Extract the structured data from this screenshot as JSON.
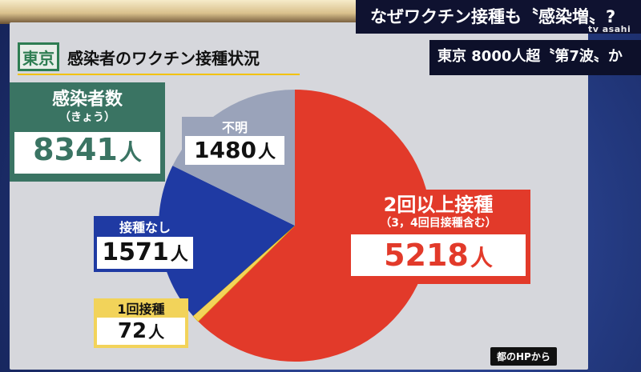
{
  "headline": "なぜワクチン接種も〝感染増〟?",
  "subheadline": "東京 8000人超〝第7波〟か",
  "logo": "tv asahi",
  "title_prefix": "東京",
  "title_main": "感染者のワクチン接種状況",
  "total_card": {
    "label_line1": "感染者数",
    "label_line2": "（きょう）",
    "value": "8341",
    "unit": "人"
  },
  "source": "都のHPから",
  "colors": {
    "two_plus": "#e23a2a",
    "none": "#1f3aa3",
    "one": "#f2d35a",
    "unknown": "#9aa3ba",
    "total": "#3a7463"
  },
  "chart_data": {
    "type": "pie",
    "total": 8341,
    "slices": [
      {
        "key": "two_plus",
        "label": "2回以上接種",
        "sub": "（3，4回目接種含む）",
        "value": 5218,
        "value_text": "5218",
        "unit": "人",
        "color": "#e23a2a"
      },
      {
        "key": "one",
        "label": "1回接種",
        "value": 72,
        "value_text": "72",
        "unit": "人",
        "color": "#f2d35a"
      },
      {
        "key": "none",
        "label": "接種なし",
        "value": 1571,
        "value_text": "1571",
        "unit": "人",
        "color": "#1f3aa3"
      },
      {
        "key": "unknown",
        "label": "不明",
        "value": 1480,
        "value_text": "1480",
        "unit": "人",
        "color": "#9aa3ba"
      }
    ]
  }
}
